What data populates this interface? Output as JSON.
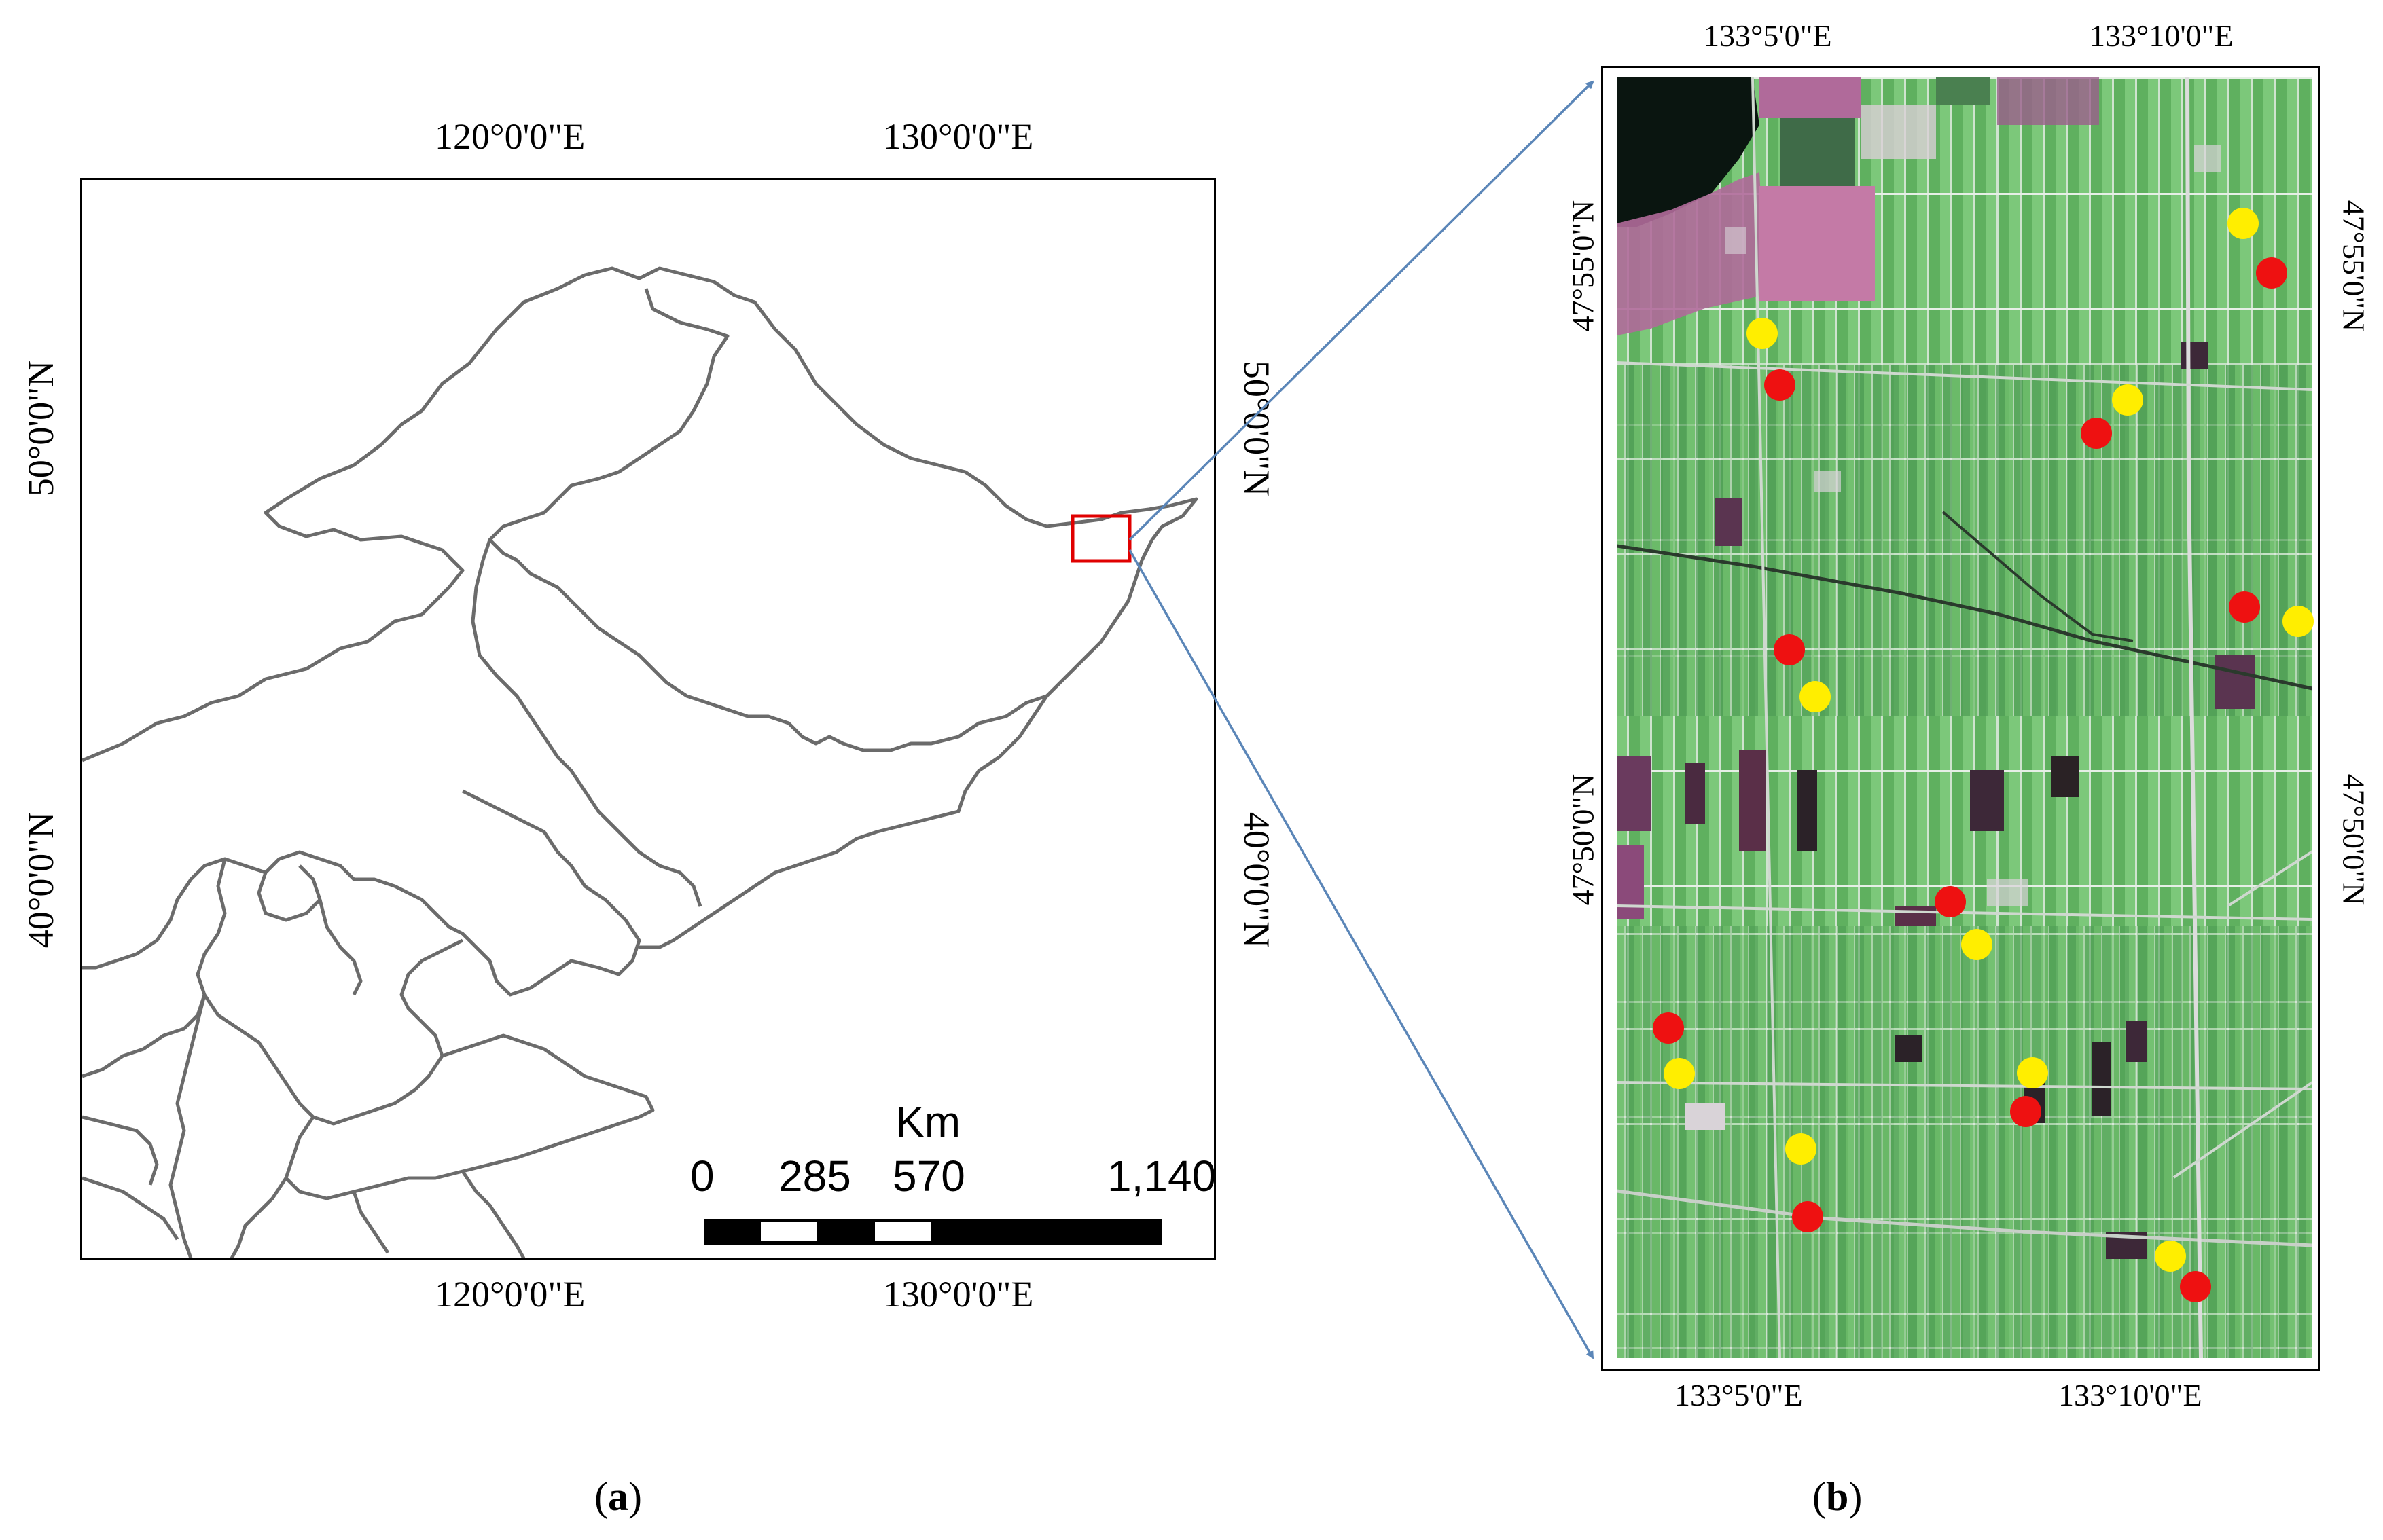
{
  "panel_a": {
    "top_labels": [
      "120°0'0\"E",
      "130°0'0\"E"
    ],
    "bottom_labels": [
      "120°0'0\"E",
      "130°0'0\"E"
    ],
    "left_labels": [
      "50°0'0\"N",
      "40°0'0\"N"
    ],
    "right_labels": [
      "50°0'0\"N",
      "40°0'0\"N"
    ],
    "scale_bar": {
      "unit": "Km",
      "ticks": [
        "0",
        "285",
        "570",
        "1,140"
      ]
    },
    "caption_letter": "a"
  },
  "panel_b": {
    "top_labels": [
      "133°5'0\"E",
      "133°10'0\"E"
    ],
    "bottom_labels": [
      "133°5'0\"E",
      "133°10'0\"E"
    ],
    "left_labels": [
      "47°55'0\"N",
      "47°50'0\"N"
    ],
    "right_labels": [
      "47°55'0\"N",
      "47°50'0\"N"
    ],
    "sample_point_colors": {
      "red": "#ee1111",
      "yellow": "#ffee00"
    },
    "caption_letter": "b"
  },
  "colors": {
    "boundary": "#6b6b6b",
    "highlight_box": "#e00000",
    "arrow": "#5b86b8",
    "field_green": "#5aa85a"
  }
}
